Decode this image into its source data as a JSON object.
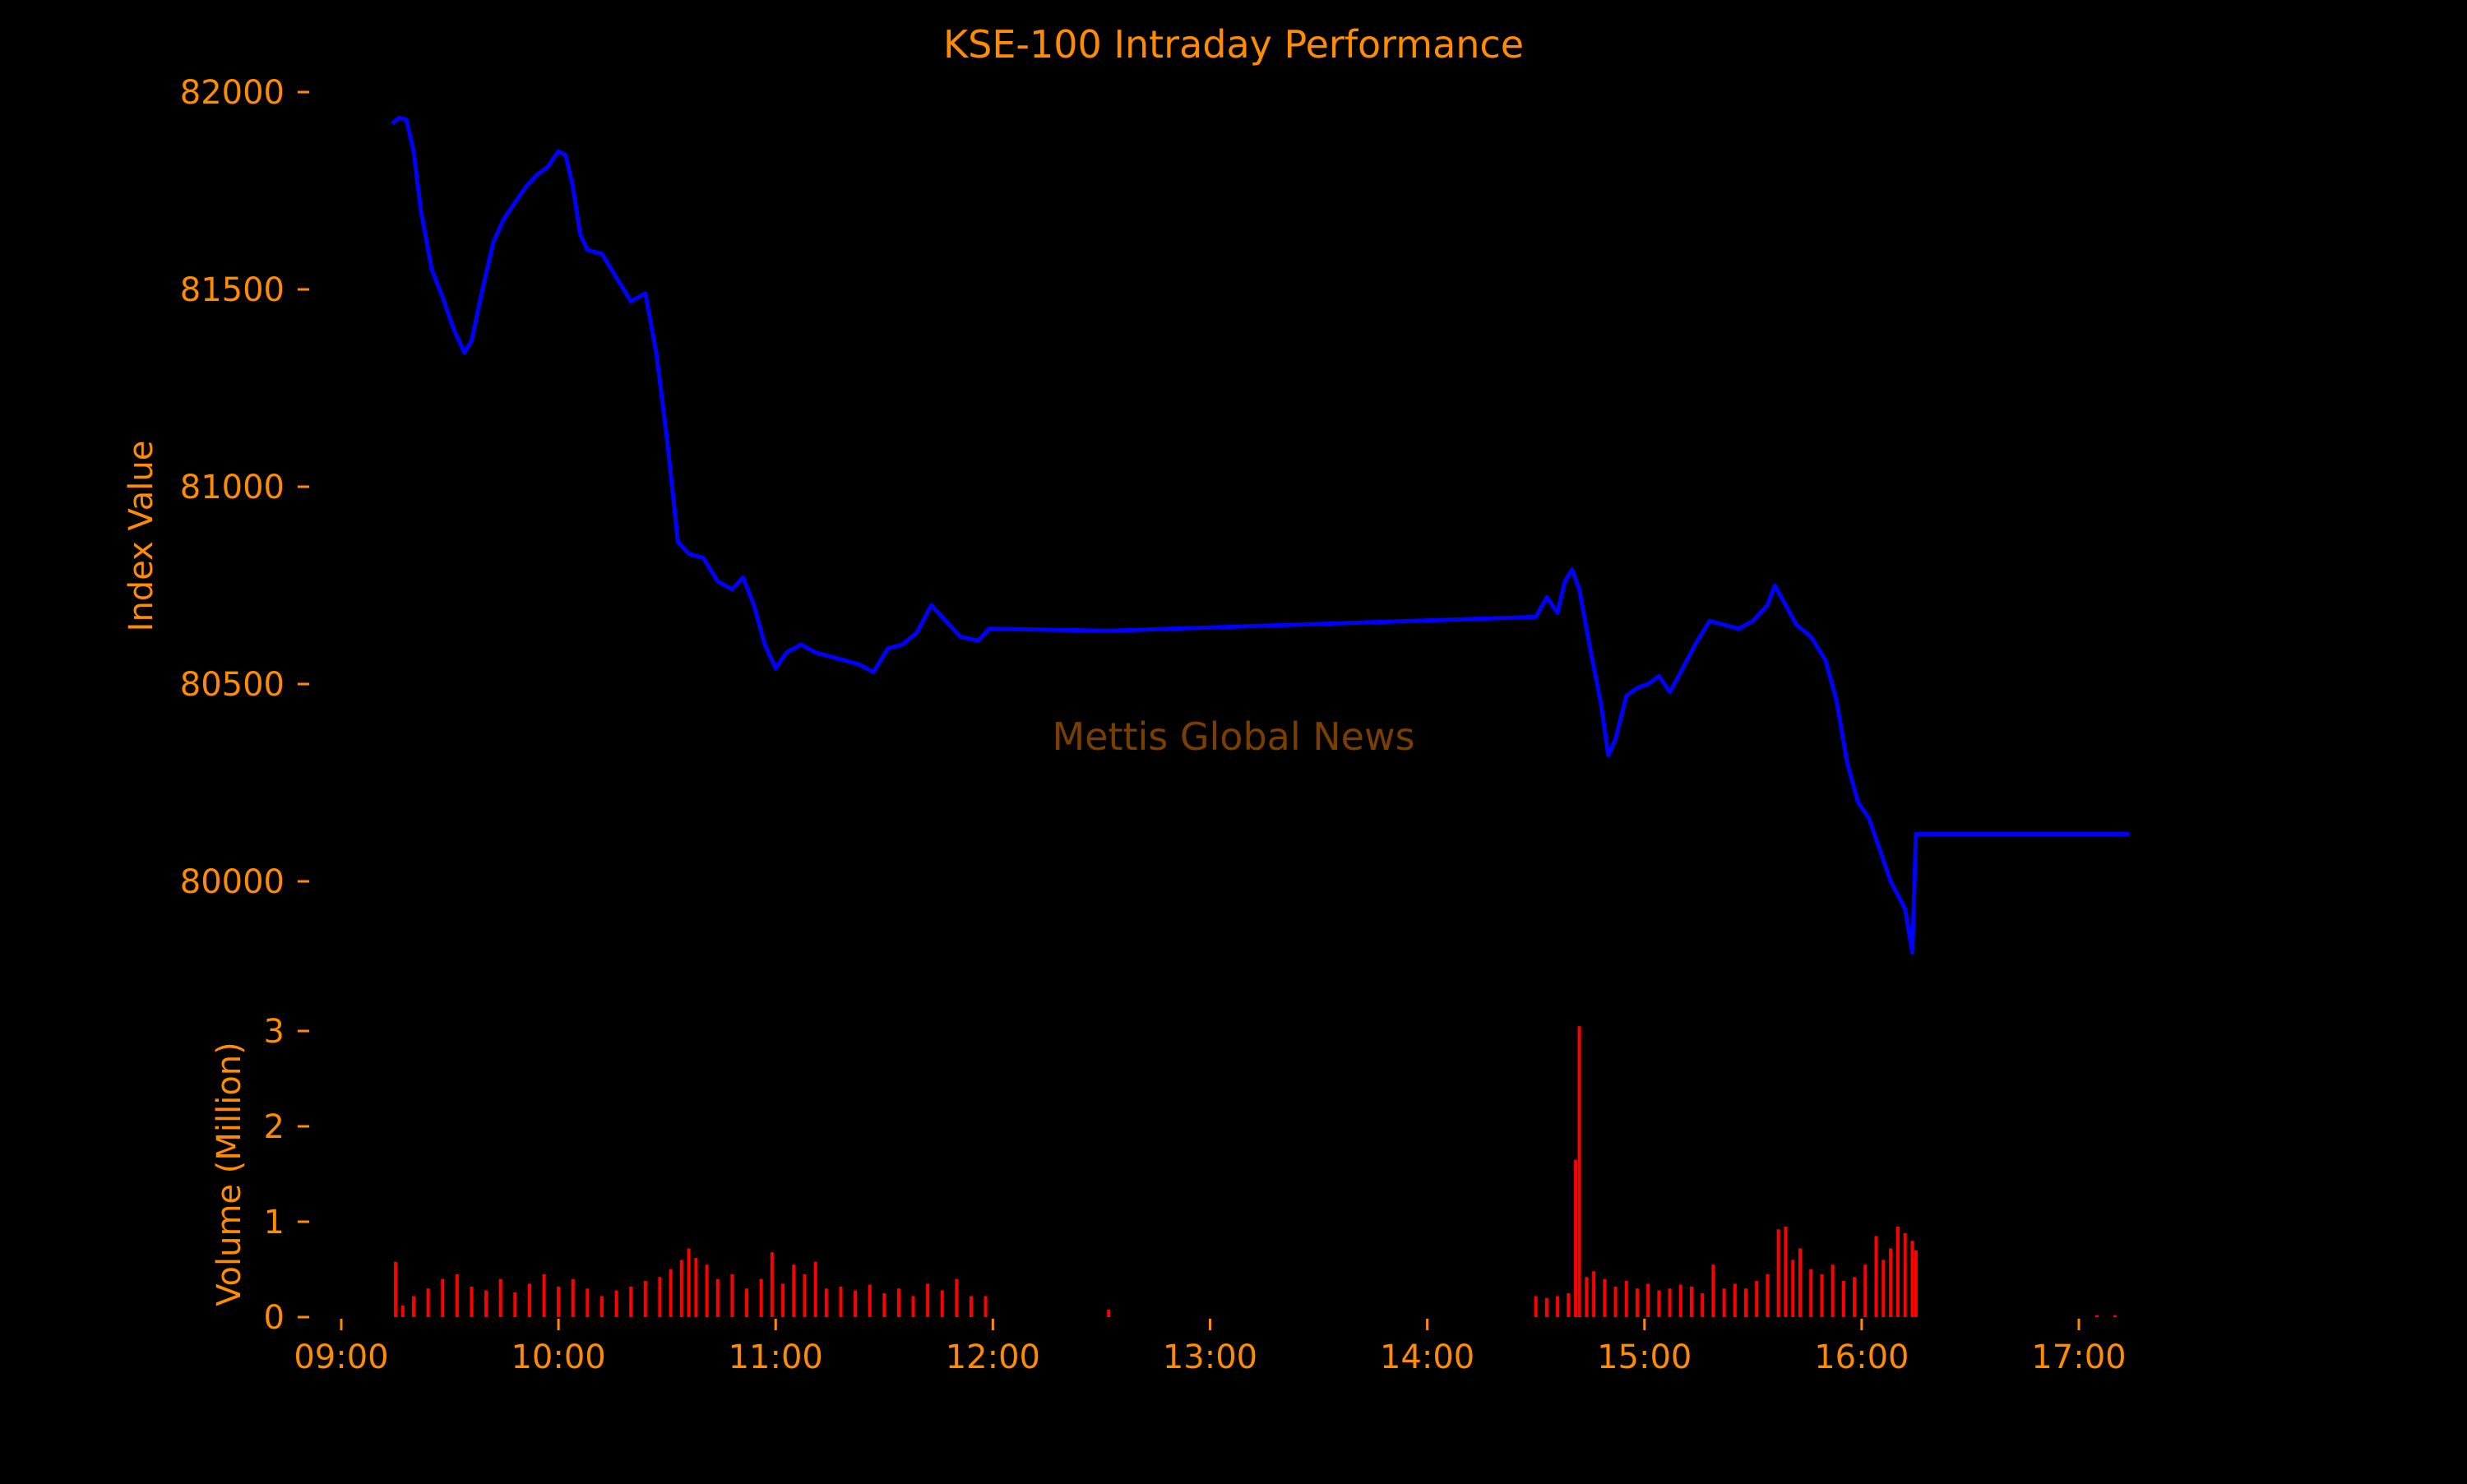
{
  "chart_data": [
    {
      "type": "line",
      "title": "KSE-100 Intraday Performance",
      "ylabel": "Index Value",
      "ylim": [
        79850,
        82150
      ],
      "y_ticks": [
        80000,
        80500,
        81000,
        81500,
        82000
      ],
      "x_ticks": [
        "09:00",
        "10:00",
        "11:00",
        "12:00",
        "13:00",
        "14:00",
        "15:00",
        "16:00",
        "17:00"
      ],
      "series": [
        {
          "color": "#0000ff",
          "points": [
            [
              "09:14",
              81920
            ],
            [
              "09:16",
              81935
            ],
            [
              "09:18",
              81930
            ],
            [
              "09:20",
              81850
            ],
            [
              "09:22",
              81700
            ],
            [
              "09:25",
              81550
            ],
            [
              "09:28",
              81480
            ],
            [
              "09:31",
              81400
            ],
            [
              "09:34",
              81340
            ],
            [
              "09:36",
              81370
            ],
            [
              "09:39",
              81500
            ],
            [
              "09:42",
              81620
            ],
            [
              "09:45",
              81680
            ],
            [
              "09:48",
              81720
            ],
            [
              "09:51",
              81760
            ],
            [
              "09:54",
              81790
            ],
            [
              "09:57",
              81810
            ],
            [
              "10:00",
              81850
            ],
            [
              "10:02",
              81840
            ],
            [
              "10:04",
              81760
            ],
            [
              "10:06",
              81640
            ],
            [
              "10:08",
              81600
            ],
            [
              "10:12",
              81590
            ],
            [
              "10:16",
              81530
            ],
            [
              "10:20",
              81470
            ],
            [
              "10:24",
              81490
            ],
            [
              "10:27",
              81340
            ],
            [
              "10:30",
              81120
            ],
            [
              "10:33",
              80860
            ],
            [
              "10:36",
              80830
            ],
            [
              "10:40",
              80820
            ],
            [
              "10:44",
              80760
            ],
            [
              "10:48",
              80740
            ],
            [
              "10:51",
              80770
            ],
            [
              "10:54",
              80700
            ],
            [
              "10:57",
              80600
            ],
            [
              "11:00",
              80540
            ],
            [
              "11:03",
              80580
            ],
            [
              "11:07",
              80600
            ],
            [
              "11:11",
              80580
            ],
            [
              "11:15",
              80570
            ],
            [
              "11:19",
              80560
            ],
            [
              "11:23",
              80550
            ],
            [
              "11:27",
              80530
            ],
            [
              "11:31",
              80590
            ],
            [
              "11:35",
              80600
            ],
            [
              "11:39",
              80630
            ],
            [
              "11:43",
              80700
            ],
            [
              "11:47",
              80660
            ],
            [
              "11:51",
              80620
            ],
            [
              "11:56",
              80610
            ],
            [
              "11:59",
              80640
            ],
            [
              "12:32",
              80635
            ],
            [
              "14:30",
              80670
            ],
            [
              "14:33",
              80720
            ],
            [
              "14:36",
              80680
            ],
            [
              "14:38",
              80760
            ],
            [
              "14:40",
              80790
            ],
            [
              "14:42",
              80740
            ],
            [
              "14:45",
              80590
            ],
            [
              "14:48",
              80450
            ],
            [
              "14:50",
              80320
            ],
            [
              "14:52",
              80360
            ],
            [
              "14:55",
              80470
            ],
            [
              "14:58",
              80490
            ],
            [
              "15:01",
              80500
            ],
            [
              "15:04",
              80520
            ],
            [
              "15:07",
              80480
            ],
            [
              "15:10",
              80530
            ],
            [
              "15:14",
              80600
            ],
            [
              "15:18",
              80660
            ],
            [
              "15:22",
              80650
            ],
            [
              "15:26",
              80640
            ],
            [
              "15:30",
              80660
            ],
            [
              "15:34",
              80700
            ],
            [
              "15:36",
              80750
            ],
            [
              "15:39",
              80700
            ],
            [
              "15:42",
              80650
            ],
            [
              "15:46",
              80620
            ],
            [
              "15:50",
              80560
            ],
            [
              "15:53",
              80460
            ],
            [
              "15:56",
              80300
            ],
            [
              "15:59",
              80200
            ],
            [
              "16:02",
              80160
            ],
            [
              "16:05",
              80080
            ],
            [
              "16:08",
              80000
            ],
            [
              "16:12",
              79930
            ],
            [
              "16:14",
              79820
            ],
            [
              "16:15",
              80120
            ],
            [
              "17:14",
              80120
            ]
          ]
        }
      ],
      "watermark": "Mettis Global News",
      "grid": false
    },
    {
      "type": "bar",
      "ylabel": "Volume (Million)",
      "ylim": [
        0,
        3.1
      ],
      "y_ticks": [
        0,
        1,
        2,
        3
      ],
      "x_ticks": [
        "09:00",
        "10:00",
        "11:00",
        "12:00",
        "13:00",
        "14:00",
        "15:00",
        "16:00",
        "17:00"
      ],
      "color": "#ff0000",
      "series": [
        {
          "values": [
            [
              "09:15",
              0.58
            ],
            [
              "09:17",
              0.12
            ],
            [
              "09:20",
              0.22
            ],
            [
              "09:24",
              0.3
            ],
            [
              "09:28",
              0.4
            ],
            [
              "09:32",
              0.45
            ],
            [
              "09:36",
              0.32
            ],
            [
              "09:40",
              0.28
            ],
            [
              "09:44",
              0.4
            ],
            [
              "09:48",
              0.26
            ],
            [
              "09:52",
              0.35
            ],
            [
              "09:56",
              0.45
            ],
            [
              "10:00",
              0.32
            ],
            [
              "10:04",
              0.4
            ],
            [
              "10:08",
              0.3
            ],
            [
              "10:12",
              0.22
            ],
            [
              "10:16",
              0.28
            ],
            [
              "10:20",
              0.32
            ],
            [
              "10:24",
              0.38
            ],
            [
              "10:28",
              0.42
            ],
            [
              "10:31",
              0.5
            ],
            [
              "10:34",
              0.6
            ],
            [
              "10:36",
              0.72
            ],
            [
              "10:38",
              0.62
            ],
            [
              "10:41",
              0.55
            ],
            [
              "10:44",
              0.4
            ],
            [
              "10:48",
              0.45
            ],
            [
              "10:52",
              0.3
            ],
            [
              "10:56",
              0.4
            ],
            [
              "10:59",
              0.68
            ],
            [
              "11:02",
              0.35
            ],
            [
              "11:05",
              0.55
            ],
            [
              "11:08",
              0.45
            ],
            [
              "11:11",
              0.58
            ],
            [
              "11:14",
              0.3
            ],
            [
              "11:18",
              0.32
            ],
            [
              "11:22",
              0.28
            ],
            [
              "11:26",
              0.34
            ],
            [
              "11:30",
              0.25
            ],
            [
              "11:34",
              0.3
            ],
            [
              "11:38",
              0.22
            ],
            [
              "11:42",
              0.35
            ],
            [
              "11:46",
              0.28
            ],
            [
              "11:50",
              0.4
            ],
            [
              "11:54",
              0.22
            ],
            [
              "11:58",
              0.22
            ],
            [
              "12:32",
              0.08
            ],
            [
              "14:30",
              0.22
            ],
            [
              "14:33",
              0.2
            ],
            [
              "14:36",
              0.22
            ],
            [
              "14:39",
              0.25
            ],
            [
              "14:41",
              1.65
            ],
            [
              "14:42",
              3.05
            ],
            [
              "14:44",
              0.42
            ],
            [
              "14:46",
              0.48
            ],
            [
              "14:49",
              0.4
            ],
            [
              "14:52",
              0.32
            ],
            [
              "14:55",
              0.38
            ],
            [
              "14:58",
              0.3
            ],
            [
              "15:01",
              0.35
            ],
            [
              "15:04",
              0.28
            ],
            [
              "15:07",
              0.3
            ],
            [
              "15:10",
              0.34
            ],
            [
              "15:13",
              0.32
            ],
            [
              "15:16",
              0.25
            ],
            [
              "15:19",
              0.55
            ],
            [
              "15:22",
              0.3
            ],
            [
              "15:25",
              0.35
            ],
            [
              "15:28",
              0.3
            ],
            [
              "15:31",
              0.38
            ],
            [
              "15:34",
              0.45
            ],
            [
              "15:37",
              0.92
            ],
            [
              "15:39",
              0.95
            ],
            [
              "15:41",
              0.6
            ],
            [
              "15:43",
              0.72
            ],
            [
              "15:46",
              0.5
            ],
            [
              "15:49",
              0.45
            ],
            [
              "15:52",
              0.55
            ],
            [
              "15:55",
              0.38
            ],
            [
              "15:58",
              0.42
            ],
            [
              "16:01",
              0.55
            ],
            [
              "16:04",
              0.85
            ],
            [
              "16:06",
              0.6
            ],
            [
              "16:08",
              0.72
            ],
            [
              "16:10",
              0.95
            ],
            [
              "16:12",
              0.88
            ],
            [
              "16:14",
              0.8
            ],
            [
              "16:15",
              0.7
            ],
            [
              "17:05",
              0.02
            ],
            [
              "17:10",
              0.02
            ]
          ]
        }
      ]
    }
  ],
  "colors": {
    "background": "#000000",
    "text": "#ff8c00",
    "watermark": "#7a3f00",
    "line": "#0000ff",
    "volume": "#ff0000"
  }
}
